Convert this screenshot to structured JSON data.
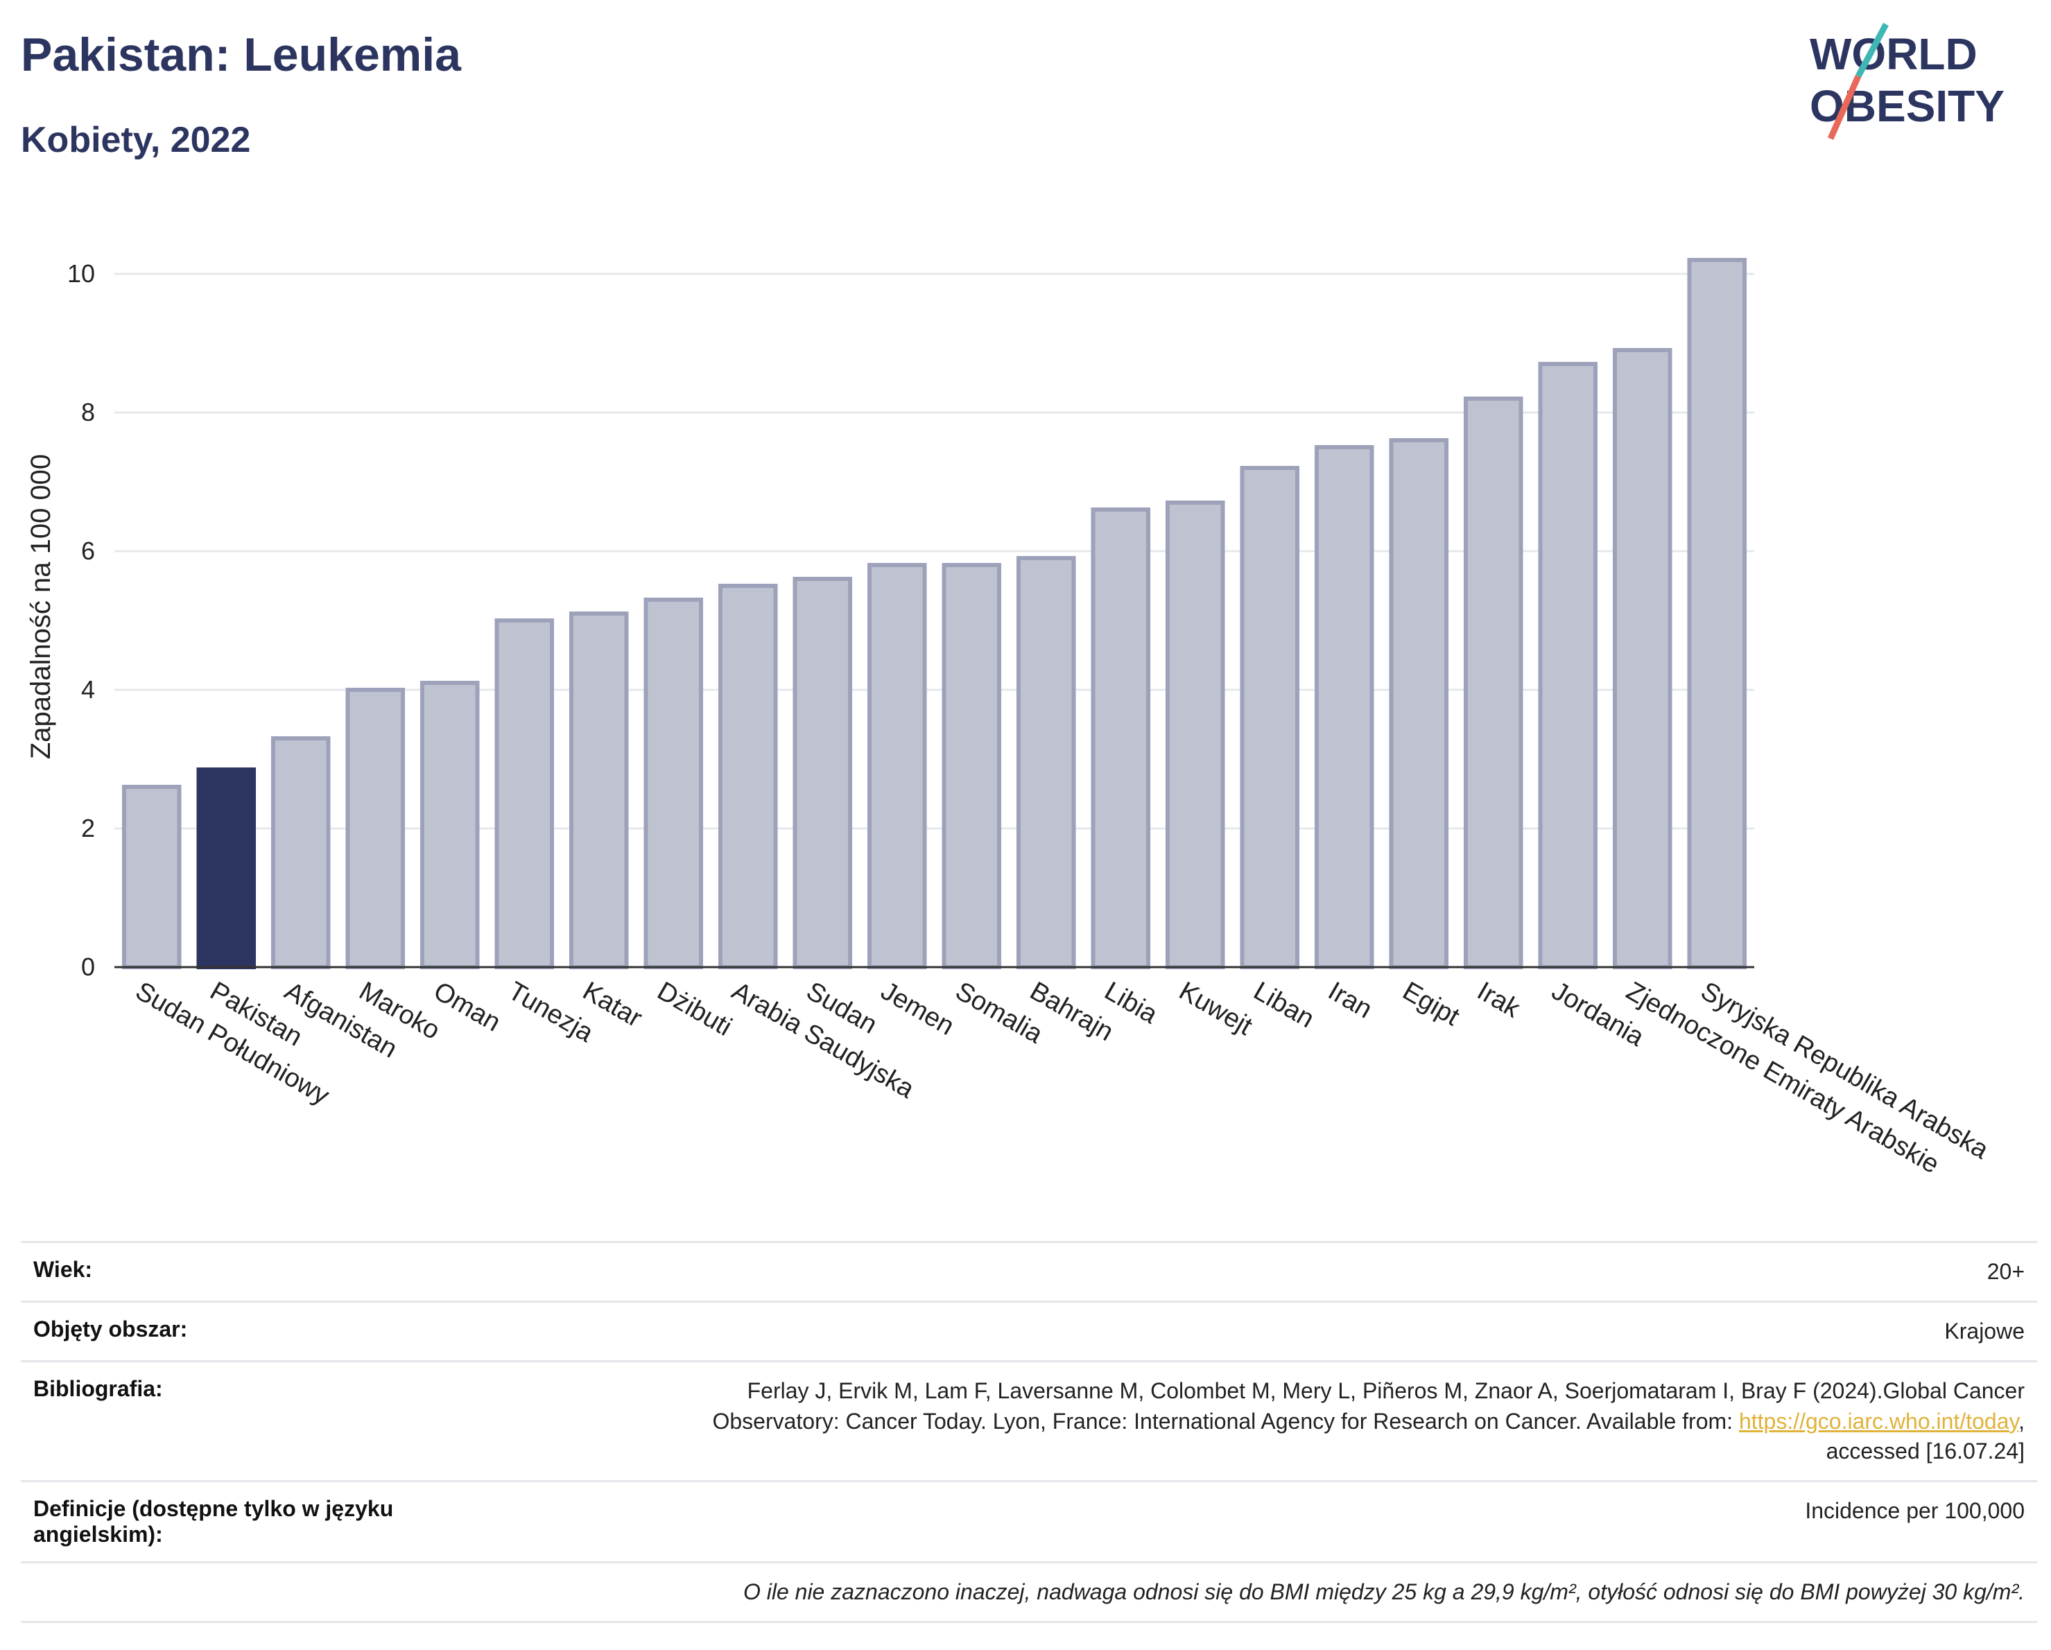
{
  "header": {
    "title": "Pakistan: Leukemia",
    "subtitle": "Kobiety, 2022",
    "logo_line1": "WORLD",
    "logo_line2": "OBESITY"
  },
  "colors": {
    "title": "#2c3560",
    "bar_default": "#bfc3d1",
    "bar_default_stroke": "#9da2ba",
    "bar_highlight": "#2c3560",
    "logo_slash_teal": "#3fb8b5",
    "logo_slash_red": "#e8685a",
    "link": "#e0b23a"
  },
  "chart_data": {
    "type": "bar",
    "title": "Pakistan: Leukemia",
    "subtitle": "Kobiety, 2022",
    "ylabel": "Zapadalność na 100 000",
    "xlabel": "",
    "ylim": [
      0,
      10.4
    ],
    "yticks": [
      0,
      2,
      4,
      6,
      8,
      10
    ],
    "grid": true,
    "highlight": "Pakistan",
    "categories": [
      "Sudan Południowy",
      "Pakistan",
      "Afganistan",
      "Maroko",
      "Oman",
      "Tunezja",
      "Katar",
      "Dżibuti",
      "Arabia Saudyjska",
      "Sudan",
      "Jemen",
      "Somalia",
      "Bahrajn",
      "Libia",
      "Kuwejt",
      "Liban",
      "Iran",
      "Egipt",
      "Irak",
      "Jordania",
      "Zjednoczone Emiraty Arabskie",
      "Syryjska Republika Arabska"
    ],
    "values": [
      2.6,
      2.85,
      3.3,
      4.0,
      4.1,
      5.0,
      5.1,
      5.3,
      5.5,
      5.6,
      5.8,
      5.8,
      5.9,
      6.6,
      6.7,
      7.2,
      7.5,
      7.6,
      8.2,
      8.7,
      8.9,
      10.2
    ]
  },
  "info": {
    "age_label": "Wiek:",
    "age_value": "20+",
    "coverage_label": "Objęty obszar:",
    "coverage_value": "Krajowe",
    "bibliography_label": "Bibliografia:",
    "bibliography_text1": "Ferlay J, Ervik M, Lam F, Laversanne M, Colombet M, Mery L, Piñeros M, Znaor A, Soerjomataram I, Bray F (2024).Global Cancer",
    "bibliography_text2": "Observatory: Cancer Today. Lyon, France: International Agency for Research on Cancer. Available from: ",
    "bibliography_link": "https://gco.iarc.who.int/today",
    "bibliography_text3": ",",
    "bibliography_text4": "accessed [16.07.24]",
    "definitions_label": "Definicje (dostępne tylko w języku angielskim):",
    "definitions_value": "Incidence per 100,000",
    "note": "O ile nie zaznaczono inaczej, nadwaga odnosi się do BMI między 25 kg a 29,9 kg/m², otyłość odnosi się do BMI powyżej 30 kg/m²."
  }
}
